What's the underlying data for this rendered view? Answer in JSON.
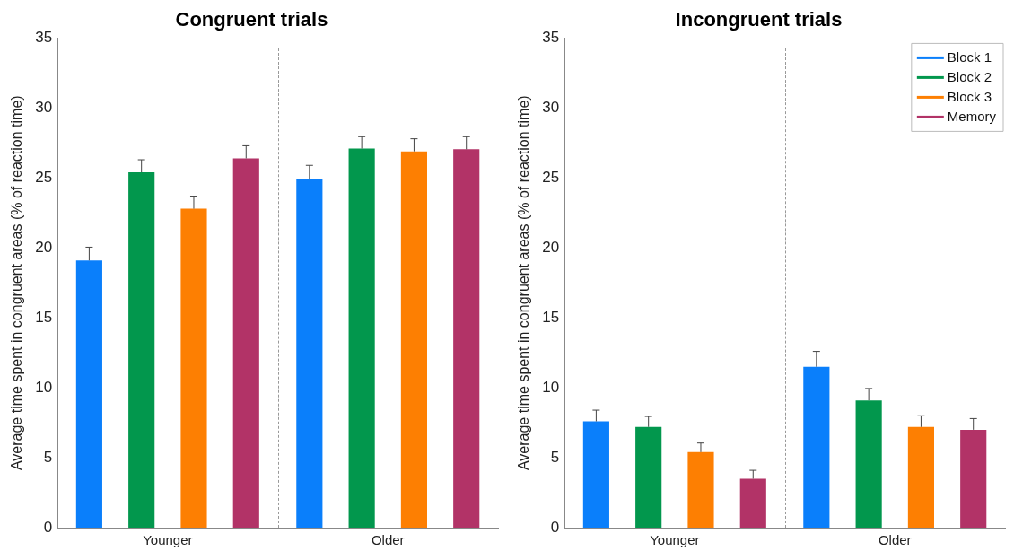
{
  "chart_data": [
    {
      "type": "bar",
      "title": "Congruent trials",
      "ylabel": "Average time spent in congruent areas (% of reaction time)",
      "categories": [
        "Younger",
        "Older"
      ],
      "series": [
        {
          "color": "#0a7ffb",
          "values": [
            19.1,
            24.9
          ],
          "errors": [
            [
              19.1,
              20.05
            ],
            [
              24.9,
              25.9
            ]
          ]
        },
        {
          "color": "#02974d",
          "values": [
            25.4,
            27.1
          ],
          "errors": [
            [
              25.4,
              26.3
            ],
            [
              27.1,
              27.95
            ]
          ]
        },
        {
          "color": "#fd7f02",
          "values": [
            22.8,
            26.9
          ],
          "errors": [
            [
              22.8,
              23.7
            ],
            [
              26.9,
              27.8
            ]
          ]
        },
        {
          "color": "#b23367",
          "values": [
            26.4,
            27.05
          ],
          "errors": [
            [
              26.4,
              27.3
            ],
            [
              27.05,
              27.95
            ]
          ]
        }
      ],
      "ylim": [
        0,
        35
      ],
      "yticks": [
        0,
        5,
        10,
        15,
        20,
        25,
        30,
        35
      ],
      "grid": false,
      "legend": false
    },
    {
      "type": "bar",
      "title": "Incongruent trials",
      "ylabel": "Average time spent in congruent areas (% of reaction time)",
      "categories": [
        "Younger",
        "Older"
      ],
      "series": [
        {
          "name": "Block 1",
          "color": "#0a7ffb",
          "values": [
            7.6,
            11.5
          ],
          "errors": [
            [
              7.6,
              8.4
            ],
            [
              11.5,
              12.6
            ]
          ]
        },
        {
          "name": "Block 2",
          "color": "#02974d",
          "values": [
            7.2,
            9.1
          ],
          "errors": [
            [
              7.2,
              7.95
            ],
            [
              9.1,
              9.95
            ]
          ]
        },
        {
          "name": "Block 3",
          "color": "#fd7f02",
          "values": [
            5.4,
            7.2
          ],
          "errors": [
            [
              5.4,
              6.05
            ],
            [
              7.2,
              8.0
            ]
          ]
        },
        {
          "name": "Memory",
          "color": "#b23367",
          "values": [
            3.5,
            7.0
          ],
          "errors": [
            [
              3.5,
              4.1
            ],
            [
              7.0,
              7.8
            ]
          ]
        }
      ],
      "ylim": [
        0,
        35
      ],
      "yticks": [
        0,
        5,
        10,
        15,
        20,
        25,
        30,
        35
      ],
      "grid": false,
      "legend": "top right"
    }
  ]
}
